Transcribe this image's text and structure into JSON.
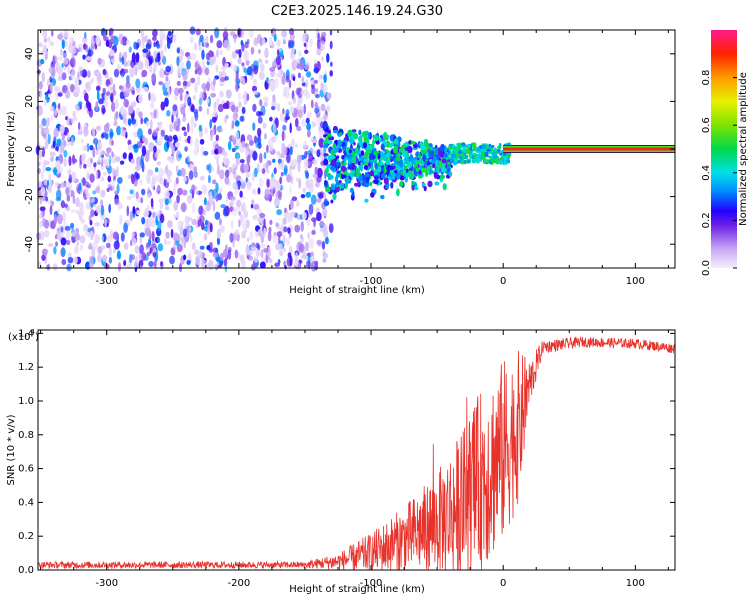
{
  "title": "C2E3.2025.146.19.24.G30",
  "chart_data": [
    {
      "type": "heatmap",
      "xlabel": "Height of straight line (km)",
      "ylabel": "Frequency (Hz)",
      "xlim": [
        -352,
        130
      ],
      "ylim": [
        -50,
        50
      ],
      "x_ticks": [
        -300,
        -200,
        -100,
        0,
        100
      ],
      "y_ticks": [
        -40,
        -20,
        0,
        20,
        40
      ],
      "x_tick_labels": [
        "-300",
        "-200",
        "-100",
        "0",
        "100"
      ],
      "y_tick_labels": [
        "-40",
        "-20",
        "0",
        "20",
        "40"
      ],
      "colorbar": {
        "label": "Normalized spectral amplitude",
        "range": [
          0,
          1
        ],
        "ticks": [
          0.0,
          0.2,
          0.4,
          0.6,
          0.8
        ],
        "tick_labels": [
          "0.0",
          "0.2",
          "0.4",
          "0.6",
          "0.8"
        ]
      },
      "regions": [
        {
          "x_from": -352,
          "x_to": -130,
          "f_min": -50,
          "f_max": 50,
          "amplitude": 0.12,
          "note": "broadband noise"
        },
        {
          "x_from": -135,
          "x_to": -40,
          "f_min": -25,
          "f_max": 12,
          "amplitude": 0.35
        },
        {
          "x_from": -40,
          "x_to": 5,
          "f_min": -5,
          "f_max": 5,
          "amplitude": 0.45
        },
        {
          "x_from": 0,
          "x_to": 130,
          "f_min": -1,
          "f_max": 1,
          "amplitude": 0.95,
          "note": "narrow carrier line"
        }
      ]
    },
    {
      "type": "line",
      "xlabel": "Height of straight line (km)",
      "ylabel": "SNR (10 * v/v)",
      "multiplier_label": "(x10",
      "multiplier_exp": "4",
      "multiplier_close": ")",
      "xlim": [
        -352,
        130
      ],
      "ylim": [
        0,
        1.42
      ],
      "x_ticks": [
        -300,
        -200,
        -100,
        0,
        100
      ],
      "y_ticks": [
        0.0,
        0.2,
        0.4,
        0.6,
        0.8,
        1.0,
        1.2,
        1.4
      ],
      "x_tick_labels": [
        "-300",
        "-200",
        "-100",
        "0",
        "100"
      ],
      "y_tick_labels": [
        "0.0",
        "0.2",
        "0.4",
        "0.6",
        "0.8",
        "1.0",
        "1.2",
        "1.4"
      ],
      "series": [
        {
          "color": "#e8312a",
          "envelope": [
            {
              "x": -352,
              "base": 0.03,
              "spread": 0.02
            },
            {
              "x": -150,
              "base": 0.03,
              "spread": 0.02
            },
            {
              "x": -125,
              "base": 0.05,
              "spread": 0.05
            },
            {
              "x": -100,
              "base": 0.1,
              "spread": 0.12
            },
            {
              "x": -75,
              "base": 0.18,
              "spread": 0.2
            },
            {
              "x": -50,
              "base": 0.28,
              "spread": 0.3
            },
            {
              "x": -30,
              "base": 0.4,
              "spread": 0.45
            },
            {
              "x": -15,
              "base": 0.55,
              "spread": 0.55
            },
            {
              "x": 0,
              "base": 0.7,
              "spread": 0.55
            },
            {
              "x": 12,
              "base": 0.85,
              "spread": 0.45
            },
            {
              "x": 20,
              "base": 1.1,
              "spread": 0.15
            },
            {
              "x": 30,
              "base": 1.32,
              "spread": 0.04
            },
            {
              "x": 60,
              "base": 1.35,
              "spread": 0.03
            },
            {
              "x": 100,
              "base": 1.34,
              "spread": 0.03
            },
            {
              "x": 130,
              "base": 1.31,
              "spread": 0.03
            }
          ]
        }
      ]
    }
  ]
}
